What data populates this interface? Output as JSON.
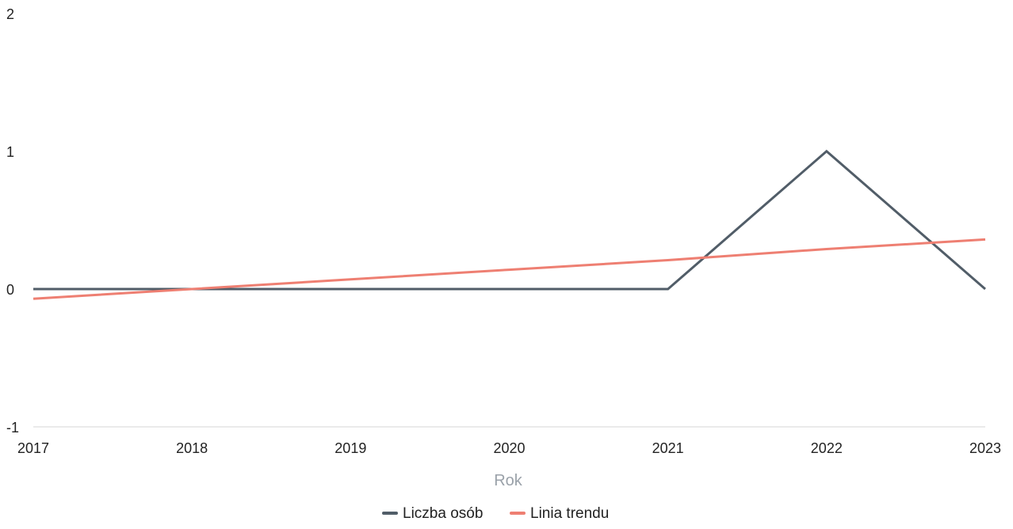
{
  "chart_data": {
    "type": "line",
    "x": [
      "2017",
      "2018",
      "2019",
      "2020",
      "2021",
      "2022",
      "2023"
    ],
    "series": [
      {
        "name": "Liczba osób",
        "values": [
          0,
          0,
          0,
          0,
          0,
          1,
          0
        ],
        "color": "#515d68"
      },
      {
        "name": "Linia trendu",
        "values": [
          -0.07,
          0.0,
          0.07,
          0.14,
          0.21,
          0.29,
          0.36
        ],
        "color": "#ee7f72"
      }
    ],
    "xlabel": "Rok",
    "ylabel": "",
    "ylim": [
      -1,
      2
    ],
    "y_ticks": [
      "-1",
      "0",
      "1",
      "2"
    ],
    "grid": false,
    "legend_position": "bottom-center",
    "axis_line_color": "#eaeaea"
  }
}
